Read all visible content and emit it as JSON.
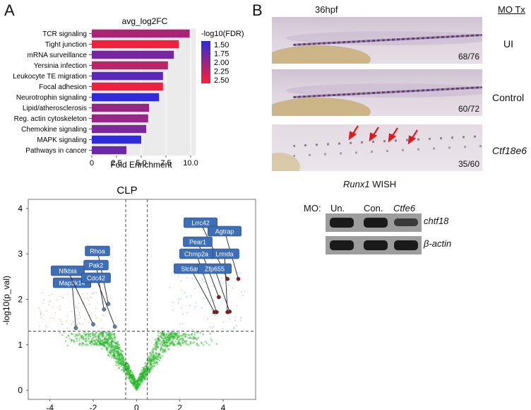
{
  "panel_a_label": "A",
  "panel_b_label": "B",
  "chart_data": [
    {
      "type": "bar",
      "title": "avg_log2FC",
      "xlabel": "Fold Enrichment",
      "ylabel": "",
      "categories": [
        "TCR signaling",
        "Tight junction",
        "mRNA surveillance",
        "Yersinia infection",
        "Leukocyte TE migration",
        "Focal adhesion",
        "Neurotrophin signaling",
        "Lipid/atherosclerosis",
        "Reg. actin cytoskeleton",
        "Chemokine signaling",
        "MAPK signaling",
        "Pathways in cancer"
      ],
      "values": [
        9.9,
        8.8,
        8.3,
        7.7,
        7.2,
        7.2,
        6.8,
        5.8,
        5.7,
        5.5,
        5.0,
        3.5
      ],
      "fdr": [
        2.1,
        2.5,
        1.8,
        2.2,
        1.65,
        2.5,
        1.4,
        2.0,
        2.0,
        1.85,
        1.4,
        1.75
      ],
      "xlim": [
        0,
        10.5
      ],
      "xticks": [
        "0",
        "2.5",
        "5.0",
        "7.5",
        "10.0"
      ],
      "xtick_values": [
        0,
        2.5,
        5.0,
        7.5,
        10.0
      ],
      "legend": {
        "title": "-log10(FDR)",
        "ticks": [
          "1.50",
          "1.75",
          "2.00",
          "2.25",
          "2.50"
        ],
        "range": [
          1.4,
          2.6
        ],
        "colors": [
          "#2f2bd9",
          "#ff2030"
        ]
      },
      "grid": true
    },
    {
      "type": "scatter",
      "title": "CLP",
      "xlabel": "",
      "ylabel": "-log10(p_val)",
      "xlim": [
        -5,
        5.5
      ],
      "ylim": [
        -0.2,
        4.2
      ],
      "xticks": [
        "-4",
        "-2",
        "0",
        "2",
        "4"
      ],
      "xtick_values": [
        -4,
        -2,
        0,
        2,
        4
      ],
      "yticks": [
        "0",
        "1",
        "2",
        "3",
        "4"
      ],
      "ytick_values": [
        0,
        1,
        2,
        3,
        4
      ],
      "thresholds": {
        "x": [
          -0.5,
          0.5
        ],
        "y": 1.3
      },
      "down_labels": [
        {
          "name": "Map3k14",
          "x": -2.8,
          "y": 1.37
        },
        {
          "name": "Nfkbia",
          "x": -2.0,
          "y": 1.45
        },
        {
          "name": "Rhoa",
          "x": -1.3,
          "y": 1.9
        },
        {
          "name": "Pak2",
          "x": -1.5,
          "y": 1.78
        },
        {
          "name": "Cdc42",
          "x": -1.0,
          "y": 1.4
        }
      ],
      "up_labels": [
        {
          "name": "Lrrc42",
          "x": 4.2,
          "y": 2.45
        },
        {
          "name": "Agtrap",
          "x": 4.7,
          "y": 2.45
        },
        {
          "name": "Pear1",
          "x": 3.8,
          "y": 2.05
        },
        {
          "name": "Lrmda",
          "x": 4.2,
          "y": 1.72
        },
        {
          "name": "Chmp2a",
          "x": 3.7,
          "y": 1.72
        },
        {
          "name": "Slc6a6",
          "x": 3.6,
          "y": 1.72
        },
        {
          "name": "Zfp655",
          "x": 4.3,
          "y": 1.73
        }
      ]
    }
  ],
  "panel_b": {
    "title": "36hpf",
    "column_header": "MO Tx",
    "rows": [
      {
        "label": "UI",
        "ratio": "68/76"
      },
      {
        "label": "Control",
        "ratio": "60/72"
      },
      {
        "label": "Ctf18e6",
        "ratio": "35/60"
      }
    ],
    "caption_gene": "Runx1",
    "caption_rest": " WISH"
  },
  "gel": {
    "prefix": "MO:",
    "lanes": [
      "Un.",
      "Con.",
      "Ctfe6"
    ],
    "rows": [
      "chtf18",
      "β-actin"
    ],
    "band_intensity": [
      [
        1.0,
        1.0,
        0.55
      ],
      [
        1.0,
        1.0,
        1.0
      ]
    ]
  }
}
